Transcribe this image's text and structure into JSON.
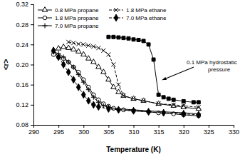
{
  "chart_data": {
    "type": "line",
    "x_label": "Temperature (K)",
    "y_label": "<r>",
    "xlim": [
      290,
      330
    ],
    "xticks": [
      290,
      295,
      300,
      305,
      310,
      315,
      320,
      325,
      330
    ],
    "ylim": [
      0.08,
      0.32
    ],
    "yticks": [
      0.08,
      0.12,
      0.16,
      {
        "value": 0.2,
        "label": "0.20"
      },
      0.24,
      0.28,
      0.32
    ],
    "legend": "upper left",
    "grid": false,
    "annotations": [
      {
        "text": "0.1 MPa hydrostatic pressure"
      }
    ],
    "series": [
      {
        "name": "0.8 MPa propane",
        "color": "#000000",
        "marker": "triangle-open",
        "line_style": "solid",
        "x": [
          295,
          296,
          297,
          298,
          299,
          300,
          301,
          302,
          303,
          304,
          305,
          306,
          307,
          308,
          310,
          312,
          315,
          318,
          320,
          323
        ],
        "values": [
          0.232,
          0.235,
          0.233,
          0.23,
          0.226,
          0.22,
          0.212,
          0.205,
          0.195,
          0.185,
          0.17,
          0.155,
          0.145,
          0.138,
          0.132,
          0.128,
          0.122,
          0.118,
          0.115,
          0.112
        ]
      },
      {
        "name": "1.8 MPa propane",
        "color": "#000000",
        "marker": "circle-open",
        "line_style": "solid",
        "x": [
          294,
          295,
          296,
          297,
          298,
          299,
          300,
          301,
          302,
          303,
          304,
          305,
          306,
          308,
          310,
          313,
          315,
          318,
          320,
          323
        ],
        "values": [
          0.22,
          0.215,
          0.212,
          0.205,
          0.195,
          0.185,
          0.17,
          0.155,
          0.14,
          0.13,
          0.122,
          0.117,
          0.113,
          0.11,
          0.108,
          0.106,
          0.104,
          0.102,
          0.1,
          0.098
        ]
      },
      {
        "name": "7.0 MPa propane",
        "color": "#000000",
        "marker": "plus",
        "line_style": "solid",
        "x": [
          294,
          295,
          296,
          297,
          298,
          299,
          300,
          301,
          302,
          303,
          304,
          305,
          307,
          310,
          313,
          316,
          320,
          323
        ],
        "values": [
          0.225,
          0.222,
          0.215,
          0.205,
          0.195,
          0.18,
          0.165,
          0.15,
          0.135,
          0.125,
          0.118,
          0.115,
          0.112,
          0.11,
          0.108,
          0.106,
          0.104,
          0.102
        ]
      },
      {
        "name": "1.8 MPa ethane",
        "color": "#000000",
        "marker": "x",
        "line_style": "dashed",
        "x": [
          297,
          298,
          299,
          300,
          301,
          302,
          303,
          304,
          305,
          306,
          307,
          308,
          310,
          312,
          315,
          318,
          320,
          323
        ],
        "values": [
          0.245,
          0.243,
          0.241,
          0.24,
          0.238,
          0.236,
          0.233,
          0.228,
          0.22,
          0.2,
          0.16,
          0.138,
          0.132,
          0.128,
          0.122,
          0.12,
          0.118,
          0.115
        ]
      },
      {
        "name": "7.0 MPa ethane",
        "color": "#000000",
        "marker": "diamond",
        "line_style": "dashed",
        "x": [
          294,
          295,
          296,
          297,
          298,
          299,
          300,
          301,
          302,
          303,
          305,
          307,
          310,
          313,
          316,
          320,
          323
        ],
        "values": [
          0.228,
          0.215,
          0.2,
          0.185,
          0.17,
          0.155,
          0.14,
          0.128,
          0.12,
          0.116,
          0.112,
          0.11,
          0.108,
          0.106,
          0.104,
          0.102,
          0.1
        ]
      },
      {
        "color": "#000000",
        "marker": "square",
        "line_style": "solid",
        "x": [
          305,
          306,
          307,
          308,
          309,
          310,
          311,
          312,
          313,
          314,
          315,
          316,
          317,
          318,
          320,
          322,
          323
        ],
        "values": [
          0.255,
          0.255,
          0.254,
          0.253,
          0.252,
          0.25,
          0.249,
          0.247,
          0.24,
          0.21,
          0.14,
          0.135,
          0.132,
          0.13,
          0.127,
          0.125,
          0.125
        ]
      }
    ]
  }
}
